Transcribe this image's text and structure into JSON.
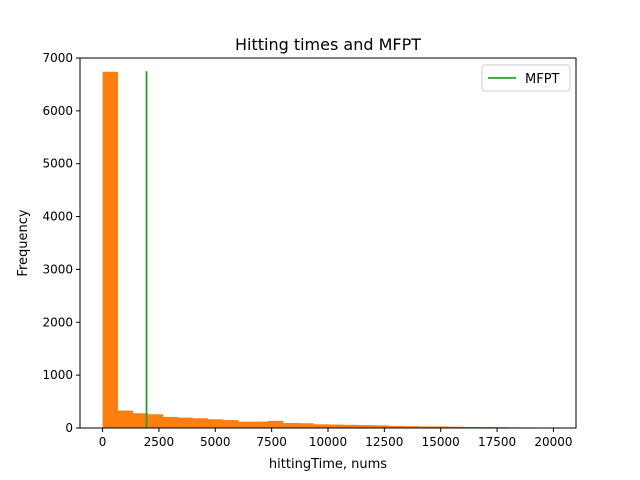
{
  "chart_data": {
    "type": "bar",
    "title": "Hitting times and MFPT",
    "xlabel": "hittingTime, nums",
    "ylabel": "Frequency",
    "xlim": [
      -1000,
      21000
    ],
    "ylim": [
      0,
      7000
    ],
    "x_ticks": [
      0,
      2500,
      5000,
      7500,
      10000,
      12500,
      15000,
      17500,
      20000
    ],
    "x_tick_labels": [
      "0",
      "2500",
      "5000",
      "7500",
      "10000",
      "12500",
      "15000",
      "17500",
      "20000"
    ],
    "y_ticks": [
      0,
      1000,
      2000,
      3000,
      4000,
      5000,
      6000,
      7000
    ],
    "y_tick_labels": [
      "0",
      "1000",
      "2000",
      "3000",
      "4000",
      "5000",
      "6000",
      "7000"
    ],
    "histogram": {
      "color": "#ff7f0e",
      "bin_start": 0,
      "bin_width": 666.7,
      "counts": [
        6740,
        330,
        280,
        260,
        210,
        195,
        185,
        165,
        150,
        120,
        120,
        135,
        95,
        90,
        70,
        65,
        60,
        55,
        50,
        40,
        35,
        30,
        30,
        25,
        20,
        18,
        15,
        12,
        10,
        8
      ]
    },
    "mfpt_line": {
      "label": "MFPT",
      "x": 1950,
      "y_range": [
        0,
        6750
      ],
      "color": "#2ca02c"
    },
    "legend": {
      "position": "top-right"
    }
  }
}
